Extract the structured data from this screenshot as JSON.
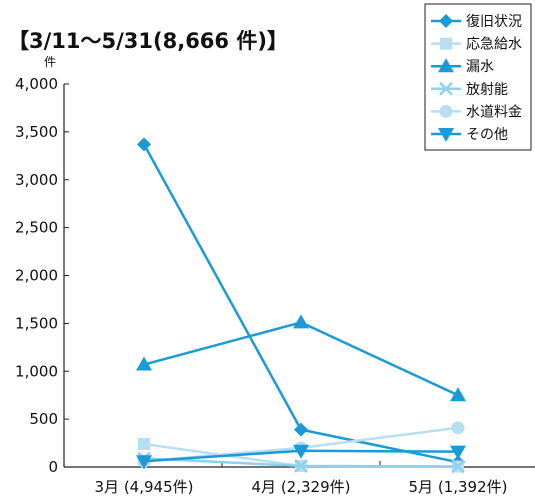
{
  "chart_data": {
    "type": "line",
    "title": "【3/11～5/31(8,666 件)】",
    "ylabel": "件",
    "xlabel": "",
    "categories": [
      "3月 (4,945件)",
      "4月 (2,329件)",
      "5月 (1,392件)"
    ],
    "ylim": [
      0,
      4000
    ],
    "yticks": [
      0,
      500,
      1000,
      1500,
      2000,
      2500,
      3000,
      3500,
      4000
    ],
    "ytick_labels": [
      "0",
      "500",
      "1,000",
      "1,500",
      "2,000",
      "2,500",
      "3,000",
      "3,500",
      "4,000"
    ],
    "grid": false,
    "legend_position": "top-right",
    "series": [
      {
        "name": "復旧状況",
        "values": [
          3370,
          390,
          50
        ],
        "color": "#1a9ad6",
        "marker": "diamond"
      },
      {
        "name": "応急給水",
        "values": [
          240,
          10,
          5
        ],
        "color": "#b8def2",
        "marker": "square"
      },
      {
        "name": "漏水",
        "values": [
          1070,
          1510,
          750
        ],
        "color": "#1a9ad6",
        "marker": "triangle-up"
      },
      {
        "name": "放射能",
        "values": [
          90,
          10,
          5
        ],
        "color": "#8fd0ee",
        "marker": "x"
      },
      {
        "name": "水道料金",
        "values": [
          60,
          200,
          410
        ],
        "color": "#b8def2",
        "marker": "circle"
      },
      {
        "name": "その他",
        "values": [
          60,
          170,
          160
        ],
        "color": "#1a9ad6",
        "marker": "triangle-down"
      }
    ]
  }
}
